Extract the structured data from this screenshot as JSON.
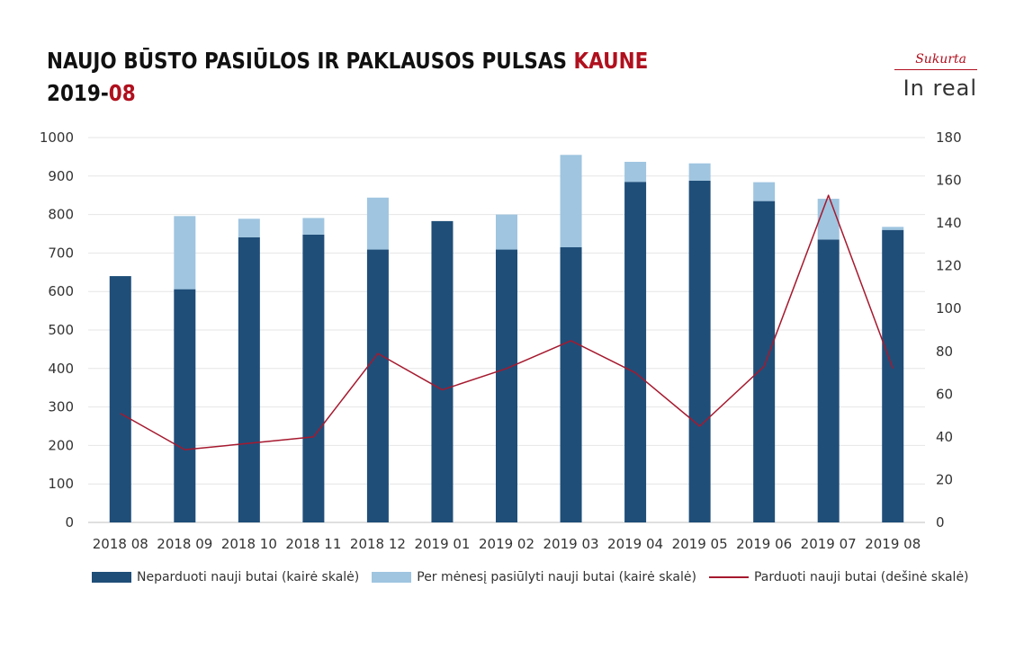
{
  "title": {
    "line1_main": "NAUJO BŪSTO PASIŪLOS IR PAKLAUSOS PULSAS",
    "line1_accent": "KAUNE",
    "line2_main": "2019-",
    "line2_accent": "08"
  },
  "logo": {
    "tagline": "Sukurta",
    "brand": "In real"
  },
  "colors": {
    "unsold": "#1f4e79",
    "offered": "#9fc5e0",
    "sold": "#a6192e",
    "accent": "#b0101e",
    "grid": "#e6e6e6"
  },
  "chart_data": {
    "type": "bar",
    "stacked": true,
    "categories": [
      "2018 08",
      "2018 09",
      "2018 10",
      "2018 11",
      "2018 12",
      "2019 01",
      "2019 02",
      "2019 03",
      "2019 04",
      "2019 05",
      "2019 06",
      "2019 07",
      "2019 08"
    ],
    "series": [
      {
        "name": "Neparduoti nauji butai (kairė skalė)",
        "type": "bar",
        "axis": "left",
        "values": [
          640,
          606,
          741,
          748,
          709,
          783,
          709,
          715,
          885,
          888,
          835,
          735,
          760
        ]
      },
      {
        "name": "Per mėnesį pasiūlyti nauji butai (kairė skalė)",
        "type": "bar",
        "axis": "left",
        "values": [
          0,
          190,
          48,
          43,
          135,
          0,
          91,
          240,
          52,
          45,
          49,
          106,
          8
        ]
      },
      {
        "name": "Parduoti nauji butai (dešinė skalė)",
        "type": "line",
        "axis": "right",
        "values": [
          51,
          34,
          37,
          40,
          79,
          62,
          72,
          85,
          70,
          45,
          73,
          153,
          72
        ]
      }
    ],
    "y_left": {
      "min": 0,
      "max": 1000,
      "ticks": [
        "0",
        "100",
        "200",
        "300",
        "400",
        "500",
        "600",
        "700",
        "800",
        "900",
        "1000"
      ]
    },
    "y_right": {
      "min": 0,
      "max": 180,
      "ticks": [
        "0",
        "20",
        "40",
        "60",
        "80",
        "100",
        "120",
        "140",
        "160",
        "180"
      ]
    },
    "grid": true,
    "legend_position": "bottom"
  }
}
